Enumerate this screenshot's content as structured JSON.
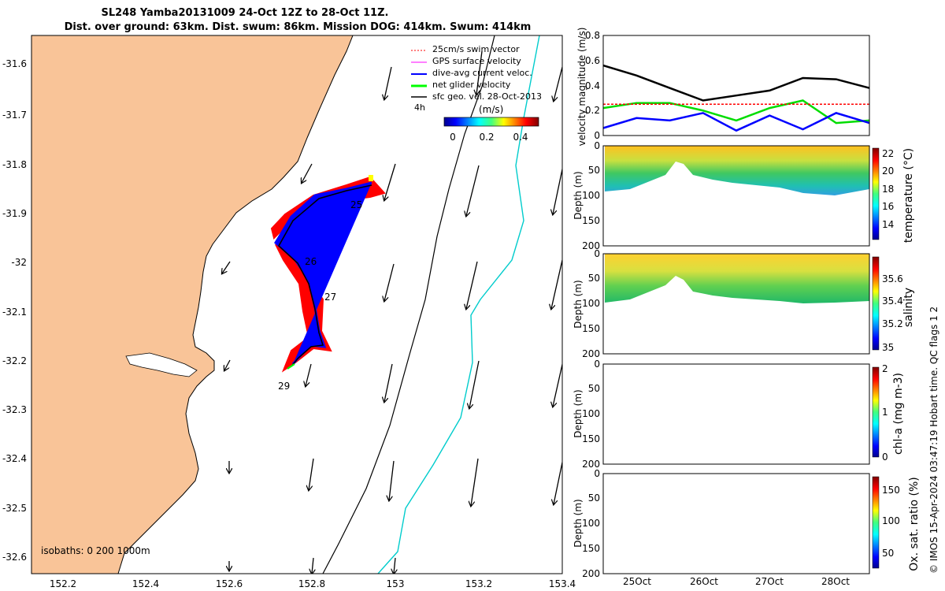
{
  "header": {
    "line1": "SL248 Yamba20131009 24-Oct 12Z to 28-Oct 11Z.",
    "line2": "Dist. over ground: 63km. Dist. swum: 86km. Mission DOG: 414km. Swum: 414km"
  },
  "map": {
    "x_ticks": [
      "152.2",
      "152.4",
      "152.6",
      "152.8",
      "153",
      "153.2",
      "153.4"
    ],
    "y_ticks": [
      "-31.6",
      "-31.7",
      "-31.8",
      "-31.9",
      "-32",
      "-32.1",
      "-32.2",
      "-32.3",
      "-32.4",
      "-32.5",
      "-32.6"
    ],
    "legend": [
      {
        "label": "25cm/s swim vector",
        "color": "#ff0000"
      },
      {
        "label": "GPS surface velocity",
        "color": "#ff00ff"
      },
      {
        "label": "dive-avg current veloc.",
        "color": "#0000ff"
      },
      {
        "label": "net glider velocity",
        "color": "#00ff00"
      },
      {
        "label": "sfc geo. vel. 28-Oct-2013",
        "color": "#000000"
      }
    ],
    "legend_extra": "4h",
    "colorbar_title": "(m/s)",
    "colorbar_ticks": [
      "0",
      "0.2",
      "0.4"
    ],
    "day_labels": [
      "25",
      "26",
      "27",
      "29"
    ],
    "isobaths": "isobaths: 0   200  1000m",
    "land_color": "#f9c498"
  },
  "right_panels": {
    "x_ticks": [
      "25Oct",
      "26Oct",
      "27Oct",
      "28Oct"
    ],
    "velocity": {
      "ylabel": "velocity magnitude (m/s)",
      "y_ticks": [
        "0",
        "0.2",
        "0.4",
        "0.6",
        "0.8"
      ]
    },
    "depth_ylabel": "Depth (m)",
    "depth_ticks": [
      "0",
      "50",
      "100",
      "150",
      "200"
    ],
    "temperature": {
      "cblabel": "temperature (°C)",
      "cbticks": [
        "14",
        "16",
        "18",
        "20",
        "22"
      ]
    },
    "salinity": {
      "cblabel": "salinity",
      "cbticks": [
        "35",
        "35.2",
        "35.4",
        "35.6"
      ]
    },
    "chla": {
      "cblabel": "chl-a (mg m-3)",
      "cbticks": [
        "0",
        "1",
        "2"
      ]
    },
    "oxygen": {
      "cblabel": "Ox. sat. ratio (%)",
      "cbticks": [
        "50",
        "100",
        "150"
      ]
    }
  },
  "footer": "© IMOS 15-Apr-2024 03:47:19 Hobart time. QC flags 1  2",
  "chart_data": [
    {
      "type": "line",
      "title": "",
      "ylabel": "velocity magnitude (m/s)",
      "x": [
        "24-Oct 12Z",
        "25-Oct 00Z",
        "25-Oct 12Z",
        "26-Oct 00Z",
        "26-Oct 12Z",
        "27-Oct 00Z",
        "27-Oct 12Z",
        "28-Oct 00Z",
        "28-Oct 11Z"
      ],
      "ylim": [
        0,
        0.8
      ],
      "series": [
        {
          "color": "#000000",
          "values": [
            0.56,
            0.48,
            0.38,
            0.28,
            0.32,
            0.36,
            0.46,
            0.45,
            0.38
          ]
        },
        {
          "color": "#00dd00",
          "values": [
            0.22,
            0.26,
            0.26,
            0.2,
            0.12,
            0.22,
            0.28,
            0.1,
            0.12
          ]
        },
        {
          "color": "#ff0000",
          "values": [
            0.25,
            0.25,
            0.25,
            0.25,
            0.25,
            0.25,
            0.25,
            0.25,
            0.25
          ]
        },
        {
          "color": "#0000ff",
          "values": [
            0.06,
            0.14,
            0.12,
            0.18,
            0.04,
            0.16,
            0.05,
            0.18,
            0.1
          ]
        }
      ]
    }
  ]
}
